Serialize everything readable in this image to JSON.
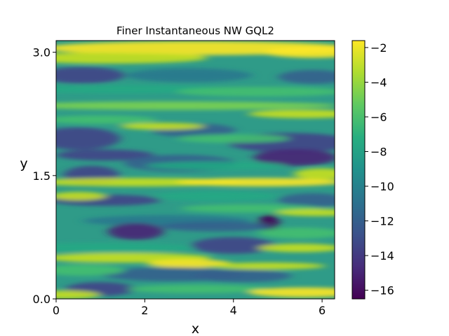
{
  "chart_data": {
    "type": "heatmap",
    "title": "Finer Instantaneous NW GQL2",
    "xlabel": "x",
    "ylabel": "y",
    "xlim": [
      0,
      6.2832
    ],
    "ylim": [
      0,
      3.1416
    ],
    "xticks": [
      0,
      2,
      4,
      6
    ],
    "xtick_labels": [
      "0",
      "2",
      "4",
      "6"
    ],
    "yticks": [
      0.0,
      1.5,
      3.0
    ],
    "ytick_labels": [
      "0.0",
      "1.5",
      "3.0"
    ],
    "colormap": "viridis",
    "colorbar": {
      "range": [
        -16.5,
        -1.6
      ],
      "ticks": [
        -2,
        -4,
        -6,
        -8,
        -10,
        -12,
        -14,
        -16
      ],
      "tick_labels": [
        "−2",
        "−4",
        "−6",
        "−8",
        "−10",
        "−12",
        "−14",
        "−16"
      ]
    },
    "field_description": "horizontally streaked turbulent field; high values (~-2) near y=3.0 and in bands near y=0.4, 1.4, 2.3; low values (~-15) in patches near y=0.2, 0.6, 1.2, 1.8, 2.7"
  }
}
